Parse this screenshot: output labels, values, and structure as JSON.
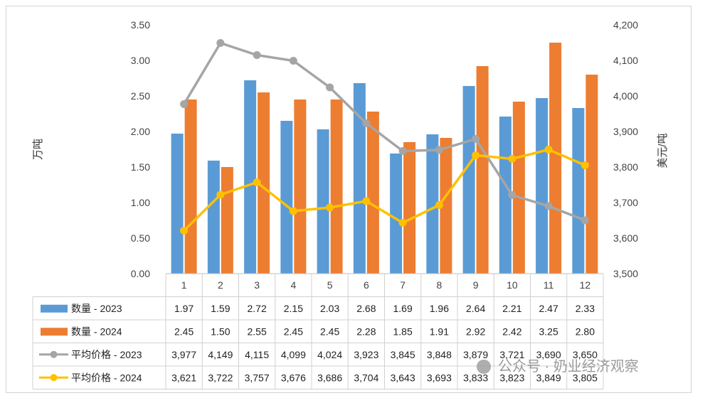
{
  "chart_data": {
    "type": "bar",
    "categories": [
      "1",
      "2",
      "3",
      "4",
      "5",
      "6",
      "7",
      "8",
      "9",
      "10",
      "11",
      "12"
    ],
    "series": [
      {
        "name": "数量 - 2023",
        "kind": "bar",
        "axis": "left",
        "color": "#5B9BD5",
        "values": [
          1.97,
          1.59,
          2.72,
          2.15,
          2.03,
          2.68,
          1.69,
          1.96,
          2.64,
          2.21,
          2.47,
          2.33
        ]
      },
      {
        "name": "数量 - 2024",
        "kind": "bar",
        "axis": "left",
        "color": "#ED7D31",
        "values": [
          2.45,
          1.5,
          2.55,
          2.45,
          2.45,
          2.28,
          1.85,
          1.91,
          2.92,
          2.42,
          3.25,
          2.8
        ]
      },
      {
        "name": "平均价格 - 2023",
        "kind": "line",
        "axis": "right",
        "color": "#A5A5A5",
        "values": [
          3977,
          4149,
          4115,
          4099,
          4024,
          3923,
          3845,
          3848,
          3879,
          3721,
          3690,
          3650
        ]
      },
      {
        "name": "平均价格 - 2024",
        "kind": "line",
        "axis": "right",
        "color": "#FFC000",
        "values": [
          3621,
          3722,
          3757,
          3676,
          3686,
          3704,
          3643,
          3693,
          3833,
          3823,
          3849,
          3805
        ]
      }
    ],
    "table_rows": [
      [
        "1.97",
        "1.59",
        "2.72",
        "2.15",
        "2.03",
        "2.68",
        "1.69",
        "1.96",
        "2.64",
        "2.21",
        "2.47",
        "2.33"
      ],
      [
        "2.45",
        "1.50",
        "2.55",
        "2.45",
        "2.45",
        "2.28",
        "1.85",
        "1.91",
        "2.92",
        "2.42",
        "3.25",
        "2.80"
      ],
      [
        "3,977",
        "4,149",
        "4,115",
        "4,099",
        "4,024",
        "3,923",
        "3,845",
        "3,848",
        "3,879",
        "3,721",
        "3,690",
        "3,650"
      ],
      [
        "3,621",
        "3,722",
        "3,757",
        "3,676",
        "3,686",
        "3,704",
        "3,643",
        "3,693",
        "3,833",
        "3,823",
        "3,849",
        "3,805"
      ]
    ],
    "ylabel_left": "万吨",
    "ylabel_right": "美元/吨",
    "ylim_left": [
      0,
      3.5
    ],
    "ylim_right": [
      3500,
      4200
    ],
    "yticks_left": [
      "0.00",
      "0.50",
      "1.00",
      "1.50",
      "2.00",
      "2.50",
      "3.00",
      "3.50"
    ],
    "yticks_right": [
      "3,500",
      "3,600",
      "3,700",
      "3,800",
      "3,900",
      "4,000",
      "4,100",
      "4,200"
    ],
    "legend_placement": "data-table-below",
    "grid": false
  },
  "watermark": "公众号 · 奶业经济观察"
}
